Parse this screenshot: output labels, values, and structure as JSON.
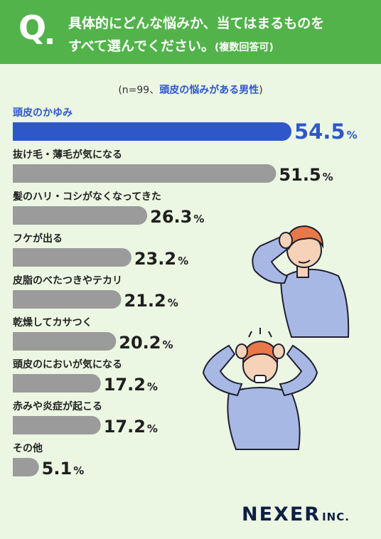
{
  "header": {
    "q_mark": "Q",
    "line1": "具体的にどんな悩みか、当てはまるものを",
    "line2": "すべて選んでください。",
    "line2_suffix": "(複数回答可)"
  },
  "subtitle": {
    "prefix": "(n=99、",
    "highlight": "頭皮の悩みがある男性",
    "suffix": ")"
  },
  "chart_data": {
    "type": "bar",
    "orientation": "horizontal",
    "unit": "%",
    "categories": [
      "頭皮のかゆみ",
      "抜け毛・薄毛が気になる",
      "髪のハリ・コシがなくなってきた",
      "フケが出る",
      "皮脂のべたつきやテカリ",
      "乾燥してカサつく",
      "頭皮のにおいが気になる",
      "赤みや炎症が起こる",
      "その他"
    ],
    "values": [
      54.5,
      51.5,
      26.3,
      23.2,
      21.2,
      20.2,
      17.2,
      17.2,
      5.1
    ],
    "value_labels": [
      "54.5",
      "51.5",
      "26.3",
      "23.2",
      "21.2",
      "20.2",
      "17.2",
      "17.2",
      "5.1"
    ],
    "highlight_index": 0,
    "colors": {
      "highlight": "#2e58c9",
      "default": "#9b9b9b"
    },
    "xlim": [
      0,
      54.5
    ]
  },
  "logo": {
    "name": "NEXER",
    "suffix": "INC."
  }
}
